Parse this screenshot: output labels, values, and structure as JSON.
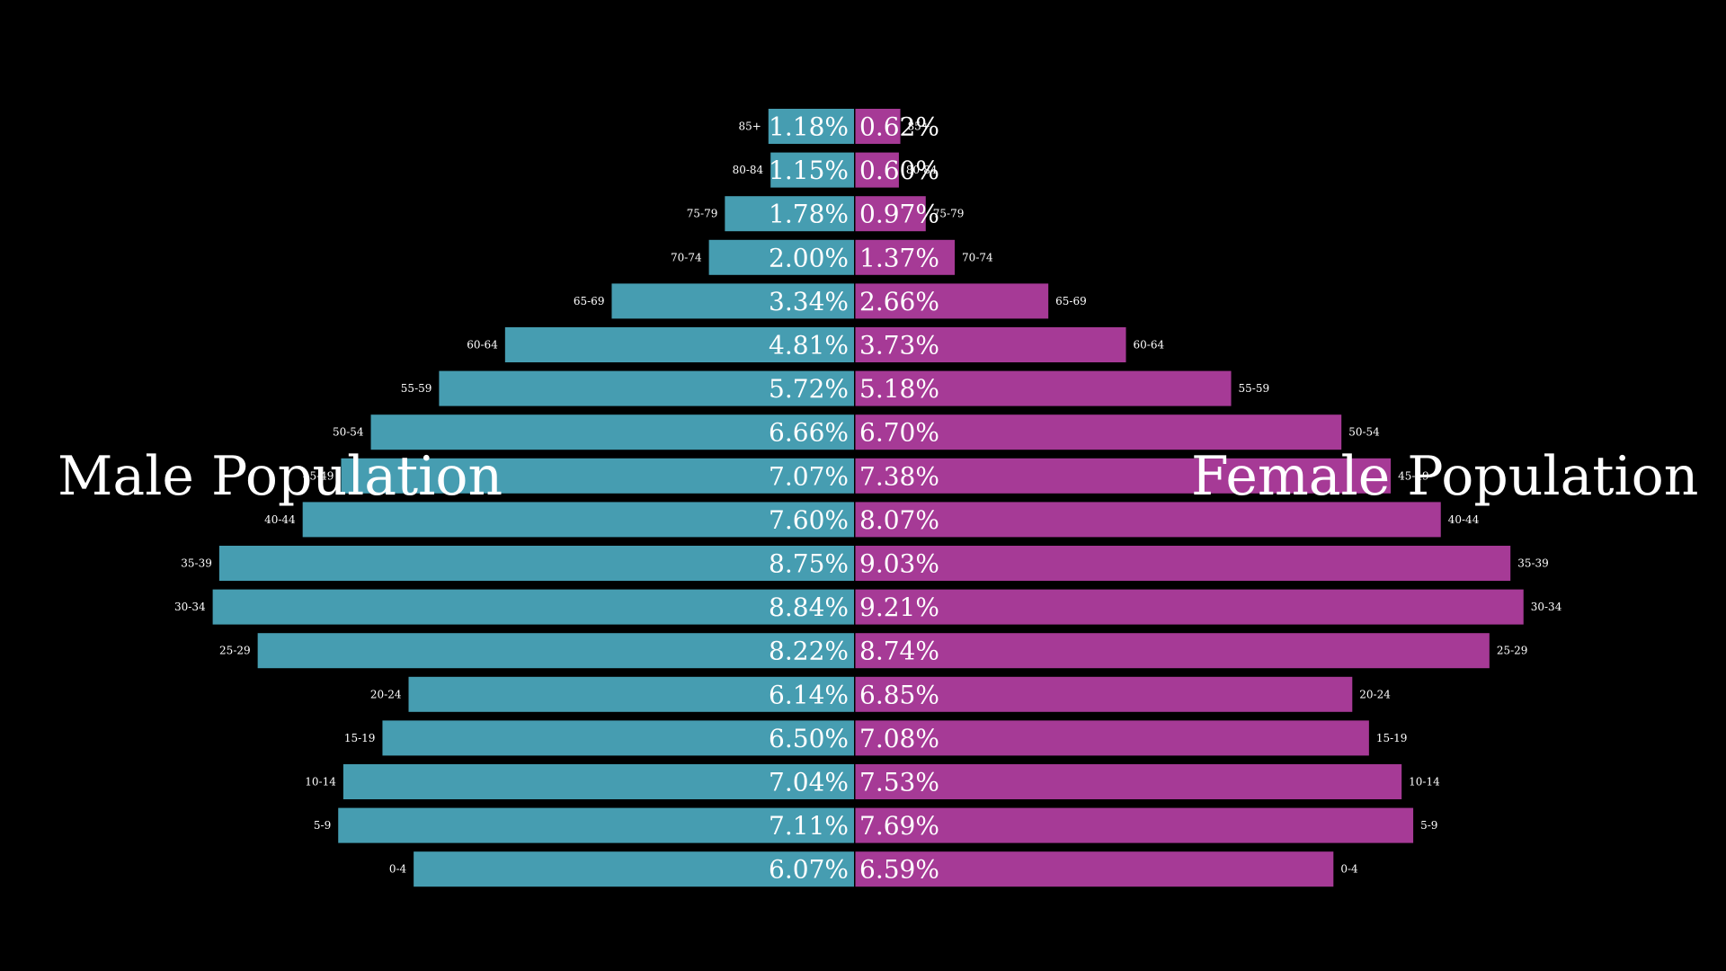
{
  "chart_data": {
    "type": "bar",
    "orientation": "horizontal-diverging",
    "categories": [
      "0-4",
      "5-9",
      "10-14",
      "15-19",
      "20-24",
      "25-29",
      "30-34",
      "35-39",
      "40-44",
      "45-49",
      "50-54",
      "55-59",
      "60-64",
      "65-69",
      "70-74",
      "75-79",
      "80-84",
      "85+"
    ],
    "series": [
      {
        "name": "Male Population",
        "labels": [
          "6.07%",
          "7.11%",
          "7.04%",
          "6.50%",
          "6.14%",
          "8.22%",
          "8.84%",
          "8.75%",
          "7.60%",
          "7.07%",
          "6.66%",
          "5.72%",
          "4.81%",
          "3.34%",
          "2.00%",
          "1.78%",
          "1.15%",
          "1.18%"
        ],
        "values": [
          6.07,
          7.11,
          7.04,
          6.5,
          6.14,
          8.22,
          8.84,
          8.75,
          7.6,
          7.07,
          6.66,
          5.72,
          4.81,
          3.34,
          2.0,
          1.78,
          1.15,
          1.18
        ]
      },
      {
        "name": "Female Population",
        "labels": [
          "6.59%",
          "7.69%",
          "7.53%",
          "7.08%",
          "6.85%",
          "8.74%",
          "9.21%",
          "9.03%",
          "8.07%",
          "7.38%",
          "6.70%",
          "5.18%",
          "3.73%",
          "2.66%",
          "1.37%",
          "0.97%",
          "0.60%",
          "0.62%"
        ],
        "values": [
          6.59,
          7.69,
          7.53,
          7.08,
          6.85,
          8.74,
          9.21,
          9.03,
          8.07,
          7.38,
          6.7,
          5.18,
          3.73,
          2.66,
          1.37,
          0.97,
          0.6,
          0.62
        ]
      }
    ],
    "title": "",
    "xlabel": "",
    "ylabel": "",
    "grid": false,
    "colors": {
      "male": "#469db1",
      "female": "#a63a96",
      "background": "#000000",
      "text": "#ffffff"
    }
  },
  "labels": {
    "male_title": "Male Population",
    "female_title": "Female Population"
  }
}
